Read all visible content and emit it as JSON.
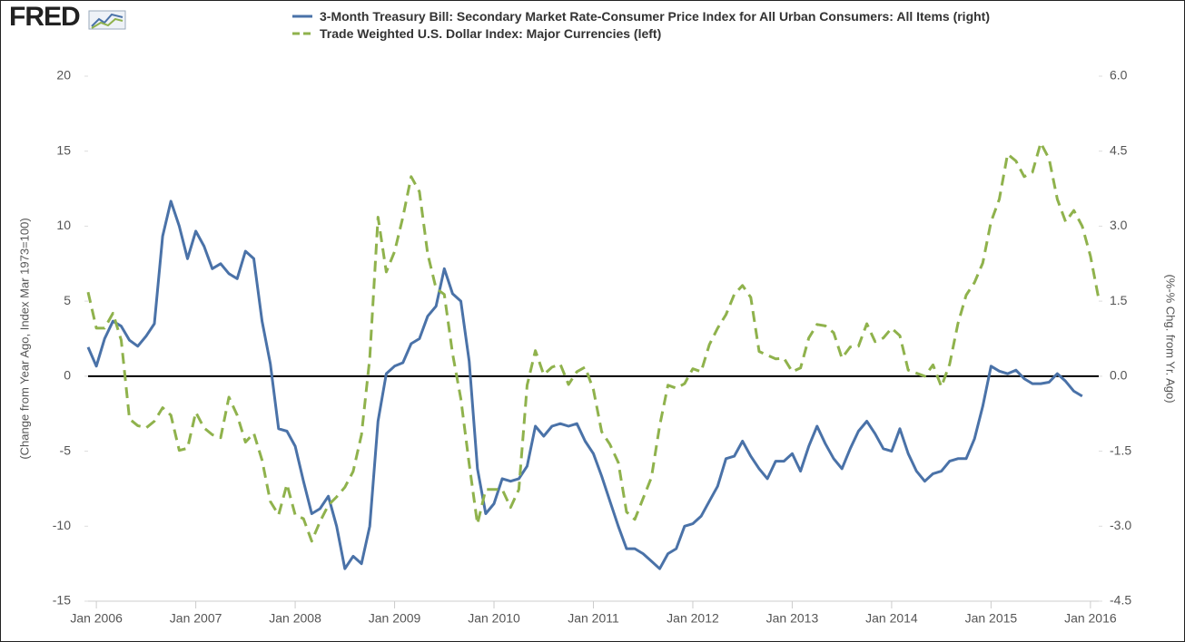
{
  "brand": "FRED",
  "chart_data": {
    "type": "line",
    "x": [
      "2005-12",
      "2006-01",
      "2006-02",
      "2006-03",
      "2006-04",
      "2006-05",
      "2006-06",
      "2006-07",
      "2006-08",
      "2006-09",
      "2006-10",
      "2006-11",
      "2006-12",
      "2007-01",
      "2007-02",
      "2007-03",
      "2007-04",
      "2007-05",
      "2007-06",
      "2007-07",
      "2007-08",
      "2007-09",
      "2007-10",
      "2007-11",
      "2007-12",
      "2008-01",
      "2008-02",
      "2008-03",
      "2008-04",
      "2008-05",
      "2008-06",
      "2008-07",
      "2008-08",
      "2008-09",
      "2008-10",
      "2008-11",
      "2008-12",
      "2009-01",
      "2009-02",
      "2009-03",
      "2009-04",
      "2009-05",
      "2009-06",
      "2009-07",
      "2009-08",
      "2009-09",
      "2009-10",
      "2009-11",
      "2009-12",
      "2010-01",
      "2010-02",
      "2010-03",
      "2010-04",
      "2010-05",
      "2010-06",
      "2010-07",
      "2010-08",
      "2010-09",
      "2010-10",
      "2010-11",
      "2010-12",
      "2011-01",
      "2011-02",
      "2011-03",
      "2011-04",
      "2011-05",
      "2011-06",
      "2011-07",
      "2011-08",
      "2011-09",
      "2011-10",
      "2011-11",
      "2011-12",
      "2012-01",
      "2012-02",
      "2012-03",
      "2012-04",
      "2012-05",
      "2012-06",
      "2012-07",
      "2012-08",
      "2012-09",
      "2012-10",
      "2012-11",
      "2012-12",
      "2013-01",
      "2013-02",
      "2013-03",
      "2013-04",
      "2013-05",
      "2013-06",
      "2013-07",
      "2013-08",
      "2013-09",
      "2013-10",
      "2013-11",
      "2013-12",
      "2014-01",
      "2014-02",
      "2014-03",
      "2014-04",
      "2014-05",
      "2014-06",
      "2014-07",
      "2014-08",
      "2014-09",
      "2014-10",
      "2014-11",
      "2014-12",
      "2015-01",
      "2015-02",
      "2015-03",
      "2015-04",
      "2015-05",
      "2015-06",
      "2015-07",
      "2015-08",
      "2015-09",
      "2015-10",
      "2015-11",
      "2015-12",
      "2016-01",
      "2016-02"
    ],
    "series": [
      {
        "name": "3-Month Treasury Bill: Secondary Market Rate-Consumer Price Index for All Urban Consumers: All Items (right)",
        "color": "#4a72a8",
        "axis": "y2",
        "dash": false,
        "values": [
          0.58,
          0.2,
          0.75,
          1.1,
          1.0,
          0.72,
          0.6,
          0.8,
          1.05,
          2.8,
          3.5,
          3.0,
          2.35,
          2.9,
          2.6,
          2.15,
          2.25,
          2.05,
          1.95,
          2.5,
          2.35,
          1.1,
          0.25,
          -1.05,
          -1.1,
          -1.4,
          -2.1,
          -2.75,
          -2.65,
          -2.4,
          -3.0,
          -3.85,
          -3.6,
          -3.75,
          -3.0,
          -0.9,
          0.05,
          0.2,
          0.27,
          0.65,
          0.75,
          1.2,
          1.4,
          2.15,
          1.65,
          1.5,
          0.3,
          -1.85,
          -2.75,
          -2.55,
          -2.05,
          -2.1,
          -2.05,
          -1.8,
          -1.0,
          -1.2,
          -1.0,
          -0.95,
          -1.0,
          -0.95,
          -1.3,
          -1.55,
          -2.0,
          -2.5,
          -3.0,
          -3.45,
          -3.45,
          -3.55,
          -3.7,
          -3.85,
          -3.55,
          -3.45,
          -3.0,
          -2.95,
          -2.8,
          -2.5,
          -2.2,
          -1.65,
          -1.6,
          -1.3,
          -1.6,
          -1.85,
          -2.05,
          -1.7,
          -1.7,
          -1.55,
          -1.9,
          -1.4,
          -1.0,
          -1.35,
          -1.65,
          -1.85,
          -1.45,
          -1.1,
          -0.9,
          -1.15,
          -1.45,
          -1.5,
          -1.05,
          -1.55,
          -1.9,
          -2.1,
          -1.95,
          -1.9,
          -1.7,
          -1.65,
          -1.65,
          -1.25,
          -0.6,
          0.2,
          0.1,
          0.05,
          0.12,
          -0.05,
          -0.15,
          -0.15,
          -0.12,
          0.05,
          -0.1,
          -0.3,
          -0.4,
          null,
          null
        ]
      },
      {
        "name": "Trade Weighted U.S. Dollar Index: Major Currencies (left)",
        "color": "#8fb24c",
        "axis": "y",
        "dash": true,
        "values": [
          5.6,
          3.2,
          3.2,
          4.2,
          2.4,
          -2.85,
          -3.3,
          -3.45,
          -3.0,
          -2.1,
          -2.6,
          -4.95,
          -4.8,
          -2.4,
          -3.45,
          -3.9,
          -4.1,
          -1.4,
          -2.6,
          -4.4,
          -3.8,
          -5.6,
          -8.35,
          -9.25,
          -7.2,
          -9.25,
          -9.5,
          -11.0,
          -9.7,
          -8.6,
          -8.05,
          -7.4,
          -6.35,
          -3.9,
          1.2,
          10.6,
          6.95,
          8.3,
          10.6,
          13.3,
          12.3,
          8.15,
          5.85,
          5.45,
          1.5,
          -1.5,
          -5.85,
          -9.85,
          -7.55,
          -7.55,
          -7.55,
          -8.75,
          -7.55,
          -0.6,
          1.7,
          0.1,
          0.6,
          0.8,
          -0.55,
          0.3,
          0.6,
          -0.9,
          -3.7,
          -4.55,
          -5.75,
          -9.05,
          -9.55,
          -8.15,
          -6.75,
          -3.3,
          -0.6,
          -0.8,
          -0.5,
          0.5,
          0.3,
          2.1,
          3.2,
          4.1,
          5.45,
          6.05,
          5.25,
          1.65,
          1.4,
          1.15,
          1.2,
          0.3,
          0.55,
          2.55,
          3.45,
          3.35,
          2.9,
          1.2,
          1.95,
          2.0,
          3.5,
          2.3,
          2.55,
          3.2,
          2.7,
          0.4,
          0.2,
          0,
          0.75,
          -0.7,
          0.8,
          3.5,
          5.4,
          6.25,
          7.55,
          10.3,
          11.8,
          14.8,
          14.35,
          13.3,
          13.6,
          15.55,
          14.5,
          11.8,
          10.3,
          11.05,
          10.0,
          8.0,
          5.15
        ]
      }
    ],
    "xlim": [
      "2005-12",
      "2016-02"
    ],
    "xticks": [
      {
        "value": "2006-01",
        "label": "Jan 2006"
      },
      {
        "value": "2007-01",
        "label": "Jan 2007"
      },
      {
        "value": "2008-01",
        "label": "Jan 2008"
      },
      {
        "value": "2009-01",
        "label": "Jan 2009"
      },
      {
        "value": "2010-01",
        "label": "Jan 2010"
      },
      {
        "value": "2011-01",
        "label": "Jan 2011"
      },
      {
        "value": "2012-01",
        "label": "Jan 2012"
      },
      {
        "value": "2013-01",
        "label": "Jan 2013"
      },
      {
        "value": "2014-01",
        "label": "Jan 2014"
      },
      {
        "value": "2015-01",
        "label": "Jan 2015"
      },
      {
        "value": "2016-01",
        "label": "Jan 2016"
      }
    ],
    "ylim": [
      -15,
      20
    ],
    "yticks": [
      -15,
      -10,
      -5,
      0,
      5,
      10,
      15,
      20
    ],
    "y2lim": [
      -4.5,
      6
    ],
    "y2ticks": [
      {
        "value": -4.5,
        "label": "-4.5"
      },
      {
        "value": -3,
        "label": "-3.0"
      },
      {
        "value": -1.5,
        "label": "-1.5"
      },
      {
        "value": 0,
        "label": "0.0"
      },
      {
        "value": 1.5,
        "label": "1.5"
      },
      {
        "value": 3,
        "label": "3.0"
      },
      {
        "value": 4.5,
        "label": "4.5"
      },
      {
        "value": 6,
        "label": "6.0"
      }
    ],
    "ylabel": "(Change from Year Ago, Index Mar 1973=100)",
    "y2label": "(%-% Chg. from Yr. Ago)",
    "zero_line": true,
    "legend": "top"
  }
}
